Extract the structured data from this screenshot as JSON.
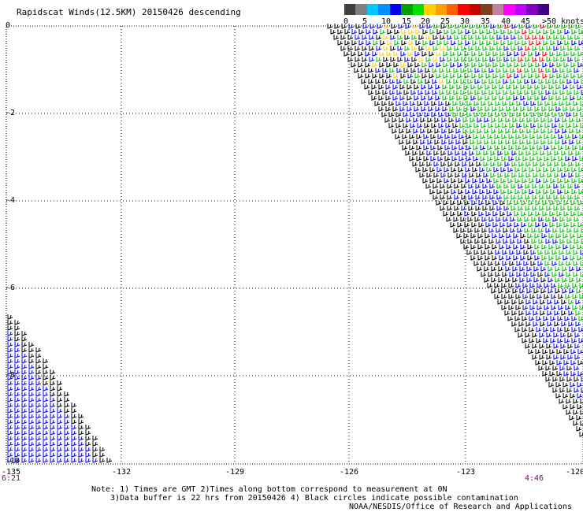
{
  "title": "Rapidscat Winds(12.5KM) 20150426 descending",
  "legend": {
    "colors": [
      "#404040",
      "#808080",
      "#00c8ff",
      "#0090ff",
      "#0000ff",
      "#00a000",
      "#00e000",
      "#ffd000",
      "#ffa000",
      "#ff6000",
      "#ff0000",
      "#c80000",
      "#804020",
      "#c080a0",
      "#ff00ff",
      "#c000ff",
      "#8000c0",
      "#400080"
    ],
    "labels": [
      "0",
      "5",
      "10",
      "15",
      "20",
      "25",
      "30",
      "35",
      "40",
      "45",
      ">50 knots"
    ]
  },
  "axes": {
    "y_labels": [
      "0",
      "-2",
      "-4",
      "-6",
      "-8",
      "-10"
    ],
    "x_labels": [
      "-135",
      "-132",
      "-129",
      "-126",
      "-123",
      "-120"
    ],
    "x_range": [
      -135,
      -120
    ],
    "y_range": [
      -10,
      0
    ]
  },
  "times": {
    "left": "6:21",
    "right": "4:46"
  },
  "notes": [
    "Note: 1) Times are GMT 2)Times along bottom correspond to measurement at 0N",
    "3)Data buffer is 22 hrs from 20150426 4) Black circles indicate possible contamination",
    "NOAA/NESDIS/Office of Research and Applications"
  ],
  "barb_colors": {
    "calm": "#000000",
    "blue": "#0000ff",
    "green": "#00c000",
    "yellow": "#ffd000",
    "red": "#ff0000",
    "cyan": "#00aaff",
    "purple": "#800080"
  }
}
